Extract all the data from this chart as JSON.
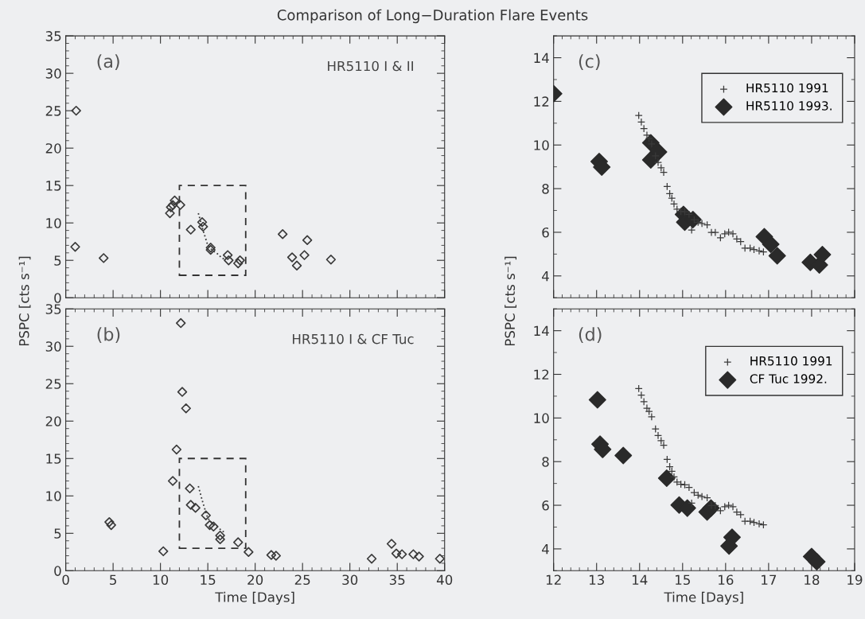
{
  "chart_data": [
    {
      "type": "scatter",
      "title": "Comparison of Long−Duration Flare Events",
      "ylabel": "PSPC [cts s⁻¹]",
      "xlim": [
        0,
        40
      ],
      "xticks": [
        0,
        5,
        10,
        15,
        20,
        25,
        30,
        35,
        40
      ],
      "ylim": [
        0,
        35
      ],
      "yticks": [
        0,
        5,
        10,
        15,
        20,
        25,
        30,
        35
      ],
      "tick_labels": "y",
      "grid": false,
      "legend": false,
      "annotations": [
        "(a)",
        "HR5110 I & II"
      ],
      "series": [
        {
          "marker": "diamond",
          "color": "#3a3a3a",
          "x": [
            1.1,
            1.0,
            4.0,
            11.0,
            11.1,
            11.3,
            11.5,
            12.1,
            13.2,
            14.4,
            14.5,
            15.3,
            15.3,
            17.1,
            17.2,
            18.2,
            18.4,
            22.9,
            23.9,
            24.4,
            25.2,
            25.5,
            28.0
          ],
          "values": [
            25.0,
            6.8,
            5.3,
            11.3,
            12.1,
            12.4,
            13.0,
            12.4,
            9.1,
            10.1,
            9.5,
            6.7,
            6.4,
            5.7,
            5.0,
            4.6,
            5.0,
            8.5,
            5.4,
            4.3,
            5.7,
            7.7,
            5.1
          ]
        },
        {
          "type": "line",
          "line_style": "dotted",
          "color": "#3a3a3a",
          "x": [
            14.0,
            14.5,
            15.0,
            15.5,
            16.0,
            16.5,
            16.9
          ],
          "values": [
            11.3,
            9.0,
            7.0,
            6.3,
            5.9,
            5.3,
            5.1
          ]
        }
      ]
    },
    {
      "type": "scatter",
      "xlabel": "Time [Days]",
      "xlim": [
        0,
        40
      ],
      "xticks": [
        0,
        5,
        10,
        15,
        20,
        25,
        30,
        35,
        40
      ],
      "ylim": [
        0,
        35
      ],
      "yticks": [
        0,
        5,
        10,
        15,
        20,
        25,
        30,
        35
      ],
      "grid": false,
      "legend": false,
      "annotations": [
        "(b)",
        "HR5110 I & CF Tuc"
      ],
      "series": [
        {
          "marker": "diamond",
          "color": "#3a3a3a",
          "x": [
            12.15,
            12.3,
            12.7,
            11.7,
            11.3,
            10.3,
            4.6,
            4.8,
            13.1,
            13.2,
            13.7,
            14.8,
            15.2,
            15.6,
            16.3,
            16.3,
            18.2,
            19.3,
            21.7,
            22.2,
            32.3,
            34.4,
            34.9,
            35.5,
            36.7,
            37.3,
            39.5
          ],
          "values": [
            33.1,
            23.9,
            21.7,
            16.2,
            12.0,
            2.6,
            6.5,
            6.1,
            11.0,
            8.8,
            8.4,
            7.4,
            6.1,
            5.9,
            4.7,
            4.2,
            3.8,
            2.5,
            2.1,
            2.0,
            1.6,
            3.6,
            2.3,
            2.2,
            2.2,
            1.9,
            1.6
          ]
        },
        {
          "type": "line",
          "line_style": "dotted",
          "color": "#3a3a3a",
          "x": [
            14.0,
            14.5,
            15.0,
            15.5,
            16.0,
            16.5,
            16.9
          ],
          "values": [
            11.3,
            9.0,
            7.0,
            6.3,
            5.9,
            5.3,
            5.1
          ]
        }
      ]
    },
    {
      "type": "scatter",
      "ylabel": "PSPC [cts s⁻¹]",
      "xlim": [
        12,
        19
      ],
      "xticks": [
        12,
        13,
        14,
        15,
        16,
        17,
        18,
        19
      ],
      "ylim": [
        3,
        15
      ],
      "yticks": [
        4,
        6,
        8,
        10,
        12,
        14
      ],
      "tick_labels": "y",
      "grid": false,
      "legend": "top right",
      "annotations": [
        "(c)"
      ],
      "series": [
        {
          "name": "HR5110 1991",
          "marker": "cross",
          "color": "#3a3a3a",
          "x": [
            13.98,
            14.04,
            14.1,
            14.17,
            14.22,
            14.28,
            14.37,
            14.43,
            14.5,
            14.56,
            14.64,
            14.7,
            14.75,
            14.8,
            14.87,
            14.96,
            15.05,
            15.15,
            15.21,
            15.27,
            15.36,
            15.45,
            15.57,
            15.67,
            15.76,
            15.88,
            15.98,
            16.07,
            16.17,
            16.26,
            16.35,
            16.45,
            16.57,
            16.66,
            16.78,
            16.88
          ],
          "values": [
            11.35,
            11.05,
            10.75,
            10.45,
            10.3,
            10.05,
            9.5,
            9.2,
            8.96,
            8.75,
            8.1,
            7.77,
            7.56,
            7.3,
            7.06,
            6.96,
            6.94,
            6.82,
            6.1,
            6.58,
            6.46,
            6.4,
            6.34,
            5.99,
            5.99,
            5.75,
            5.93,
            6.0,
            5.93,
            5.69,
            5.57,
            5.27,
            5.27,
            5.21,
            5.15,
            5.1
          ]
        },
        {
          "name": "HR5110 1993.",
          "marker": "diamond",
          "color": "#2a2a2a",
          "x": [
            12.0,
            13.06,
            13.12,
            14.26,
            14.26,
            14.44,
            15.02,
            15.05,
            15.24,
            16.9,
            17.05,
            17.2,
            17.97,
            18.18,
            18.25
          ],
          "values": [
            12.35,
            9.24,
            8.99,
            10.1,
            9.32,
            9.68,
            6.82,
            6.46,
            6.58,
            5.8,
            5.45,
            4.92,
            4.62,
            4.5,
            4.98
          ]
        }
      ]
    },
    {
      "type": "scatter",
      "xlabel": "Time [Days]",
      "xlim": [
        12,
        19
      ],
      "xticks": [
        12,
        13,
        14,
        15,
        16,
        17,
        18,
        19
      ],
      "ylim": [
        3,
        15
      ],
      "yticks": [
        4,
        6,
        8,
        10,
        12,
        14
      ],
      "grid": false,
      "legend": "top right",
      "annotations": [
        "(d)"
      ],
      "series": [
        {
          "name": "HR5110 1991",
          "marker": "cross",
          "color": "#3a3a3a",
          "x": [
            13.98,
            14.04,
            14.1,
            14.17,
            14.22,
            14.28,
            14.37,
            14.43,
            14.5,
            14.56,
            14.64,
            14.7,
            14.75,
            14.8,
            14.87,
            14.96,
            15.05,
            15.15,
            15.21,
            15.27,
            15.36,
            15.45,
            15.57,
            15.67,
            15.76,
            15.88,
            15.98,
            16.07,
            16.17,
            16.26,
            16.35,
            16.45,
            16.57,
            16.66,
            16.78,
            16.88
          ],
          "values": [
            11.35,
            11.05,
            10.75,
            10.45,
            10.3,
            10.05,
            9.5,
            9.2,
            8.96,
            8.75,
            8.1,
            7.77,
            7.56,
            7.3,
            7.06,
            6.96,
            6.94,
            6.82,
            6.1,
            6.58,
            6.46,
            6.4,
            6.34,
            5.99,
            5.99,
            5.75,
            5.93,
            6.0,
            5.93,
            5.69,
            5.57,
            5.27,
            5.27,
            5.21,
            5.15,
            5.1
          ]
        },
        {
          "name": "CF Tuc 1992.",
          "marker": "diamond",
          "color": "#2a2a2a",
          "x": [
            13.02,
            13.08,
            13.14,
            13.62,
            14.63,
            14.92,
            15.11,
            15.57,
            15.66,
            16.15,
            16.08,
            18.0,
            18.12
          ],
          "values": [
            10.83,
            8.8,
            8.56,
            8.28,
            7.24,
            6.01,
            5.87,
            5.69,
            5.87,
            4.53,
            4.13,
            3.65,
            3.41
          ]
        }
      ]
    }
  ]
}
